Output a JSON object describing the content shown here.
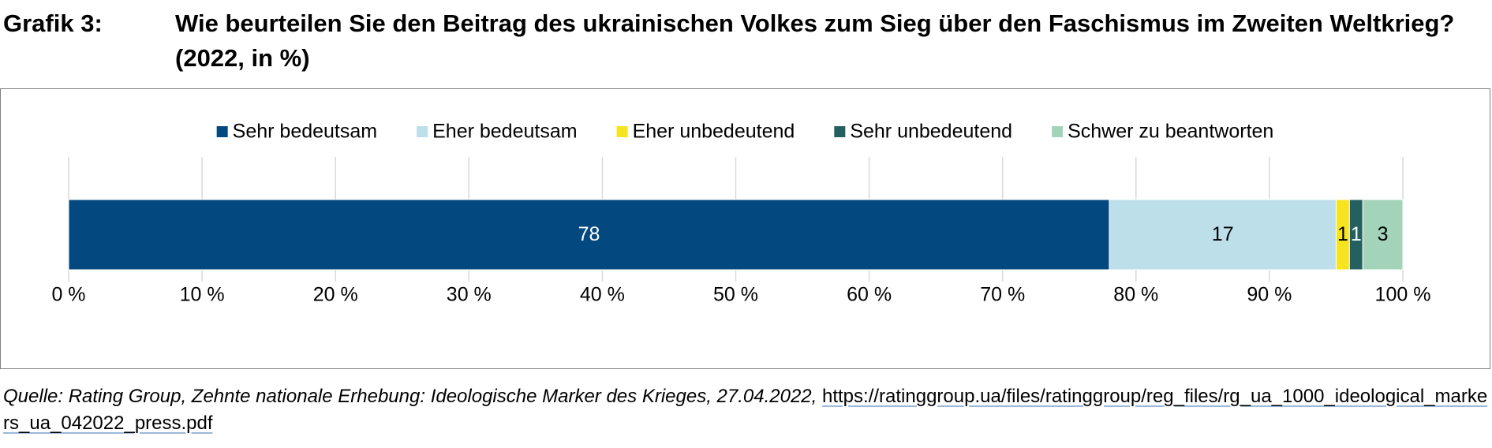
{
  "figure": {
    "label": "Grafik 3:",
    "title": "Wie beurteilen Sie den Beitrag des ukrainischen Volkes zum Sieg über den Faschismus im Zweiten Weltkrieg? (2022, in %)"
  },
  "source": {
    "prefix": "Quelle: Rating Group, Zehnte nationale Erhebung: Ideologische Marker des Krieges, 27.04.2022, ",
    "url": "https://ratinggroup.ua/files/ratinggroup/reg_files/rg_ua_1000_ideological_markers_ua_042022_press.pdf"
  },
  "chart_data": {
    "type": "bar",
    "orientation": "horizontal",
    "stacked": true,
    "categories": [
      ""
    ],
    "series": [
      {
        "name": "Sehr bedeutsam",
        "values": [
          78
        ],
        "color": "#03487f",
        "label_color": "#ffffff"
      },
      {
        "name": "Eher bedeutsam",
        "values": [
          17
        ],
        "color": "#bddfe9",
        "label_color": "#000000"
      },
      {
        "name": "Eher unbedeutend",
        "values": [
          1
        ],
        "color": "#f6e51e",
        "label_color": "#000000"
      },
      {
        "name": "Sehr unbedeutend",
        "values": [
          1
        ],
        "color": "#24605f",
        "label_color": "#ffffff"
      },
      {
        "name": "Schwer zu beantworten",
        "values": [
          3
        ],
        "color": "#a3d4b9",
        "label_color": "#000000"
      }
    ],
    "xlim": [
      0,
      100
    ],
    "xticks": [
      0,
      10,
      20,
      30,
      40,
      50,
      60,
      70,
      80,
      90,
      100
    ],
    "xtick_labels": [
      "0 %",
      "10 %",
      "20 %",
      "30 %",
      "40 %",
      "50 %",
      "60 %",
      "70 %",
      "80 %",
      "90 %",
      "100 %"
    ],
    "gridlines": "vertical",
    "legend_position": "top"
  }
}
